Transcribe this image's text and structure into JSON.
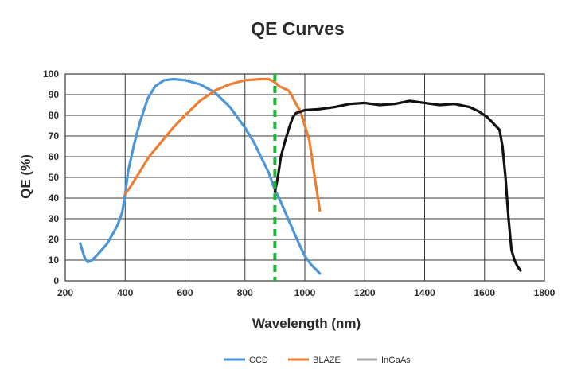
{
  "chart_data": {
    "type": "line",
    "title": "QE Curves",
    "xlabel": "Wavelength (nm)",
    "ylabel": "QE (%)",
    "xlim": [
      200,
      1800
    ],
    "ylim": [
      0,
      100
    ],
    "x_ticks": [
      200,
      400,
      600,
      800,
      1000,
      1200,
      1400,
      1600,
      1800
    ],
    "y_ticks": [
      0,
      10,
      20,
      30,
      40,
      50,
      60,
      70,
      80,
      90,
      100
    ],
    "grid": true,
    "legend_position": "bottom-center",
    "vertical_marker": {
      "x": 900,
      "color": "#1db33a",
      "style": "dashed"
    },
    "series": [
      {
        "name": "CCD",
        "color": "#4a96d6",
        "points": [
          [
            250,
            18
          ],
          [
            265,
            11
          ],
          [
            275,
            9
          ],
          [
            290,
            10
          ],
          [
            310,
            13
          ],
          [
            340,
            18
          ],
          [
            360,
            23
          ],
          [
            375,
            27
          ],
          [
            390,
            33
          ],
          [
            400,
            42
          ],
          [
            410,
            53
          ],
          [
            430,
            66
          ],
          [
            450,
            77
          ],
          [
            475,
            88
          ],
          [
            500,
            94
          ],
          [
            530,
            97
          ],
          [
            560,
            97.5
          ],
          [
            600,
            97
          ],
          [
            650,
            95
          ],
          [
            700,
            91
          ],
          [
            750,
            84
          ],
          [
            800,
            74
          ],
          [
            830,
            67
          ],
          [
            860,
            58
          ],
          [
            880,
            52
          ],
          [
            900,
            44
          ],
          [
            920,
            38
          ],
          [
            950,
            28
          ],
          [
            980,
            18
          ],
          [
            1000,
            12
          ],
          [
            1020,
            8
          ],
          [
            1040,
            5
          ],
          [
            1050,
            3.5
          ]
        ]
      },
      {
        "name": "BLAZE",
        "color": "#ed7d31",
        "points": [
          [
            400,
            42
          ],
          [
            420,
            46
          ],
          [
            450,
            53
          ],
          [
            480,
            60
          ],
          [
            520,
            67
          ],
          [
            560,
            74
          ],
          [
            600,
            80
          ],
          [
            650,
            87
          ],
          [
            700,
            92
          ],
          [
            750,
            95
          ],
          [
            800,
            97
          ],
          [
            850,
            97.5
          ],
          [
            880,
            97.5
          ],
          [
            900,
            96
          ],
          [
            915,
            94
          ],
          [
            930,
            93
          ],
          [
            945,
            92
          ],
          [
            955,
            90
          ],
          [
            965,
            87
          ],
          [
            985,
            82
          ],
          [
            1000,
            75
          ],
          [
            1015,
            68
          ],
          [
            1025,
            58
          ],
          [
            1035,
            48
          ],
          [
            1045,
            39
          ],
          [
            1050,
            34
          ]
        ]
      },
      {
        "name": "InGaAs",
        "color": "#111111",
        "legend_color": "#a6a6a6",
        "points": [
          [
            900,
            43
          ],
          [
            910,
            50
          ],
          [
            920,
            60
          ],
          [
            935,
            68
          ],
          [
            950,
            75
          ],
          [
            960,
            79
          ],
          [
            970,
            81
          ],
          [
            1000,
            82.5
          ],
          [
            1050,
            83
          ],
          [
            1100,
            84
          ],
          [
            1150,
            85.5
          ],
          [
            1200,
            86
          ],
          [
            1250,
            85
          ],
          [
            1300,
            85.5
          ],
          [
            1350,
            87
          ],
          [
            1400,
            86
          ],
          [
            1450,
            85
          ],
          [
            1500,
            85.5
          ],
          [
            1550,
            84
          ],
          [
            1580,
            82
          ],
          [
            1610,
            79
          ],
          [
            1630,
            76
          ],
          [
            1650,
            73
          ],
          [
            1660,
            65
          ],
          [
            1670,
            50
          ],
          [
            1680,
            30
          ],
          [
            1690,
            15
          ],
          [
            1700,
            10
          ],
          [
            1710,
            7
          ],
          [
            1720,
            5
          ]
        ]
      }
    ]
  }
}
